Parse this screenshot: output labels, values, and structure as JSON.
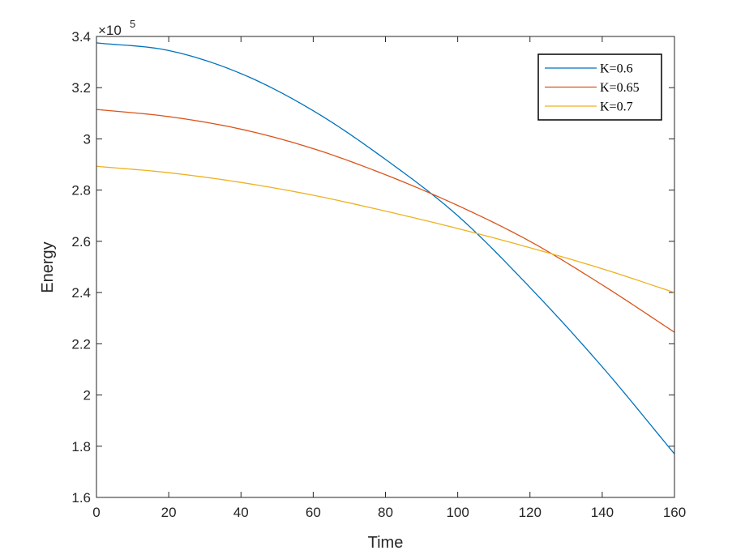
{
  "chart_data": {
    "type": "line",
    "title": "",
    "xlabel": "Time",
    "ylabel": "Energy",
    "y_exponent_label": "×10",
    "y_exponent": "5",
    "xlim": [
      0,
      160
    ],
    "ylim": [
      1.6,
      3.4
    ],
    "x_ticks": [
      0,
      20,
      40,
      60,
      80,
      100,
      120,
      140,
      160
    ],
    "y_ticks": [
      1.6,
      1.8,
      2,
      2.2,
      2.4,
      2.6,
      2.8,
      3,
      3.2,
      3.4
    ],
    "x_tick_labels": [
      "0",
      "20",
      "40",
      "60",
      "80",
      "100",
      "120",
      "140",
      "160"
    ],
    "y_tick_labels": [
      "1.6",
      "1.8",
      "2",
      "2.2",
      "2.4",
      "2.6",
      "2.8",
      "3",
      "3.2",
      "3.4"
    ],
    "grid": false,
    "legend_position": "top-right",
    "x": [
      0,
      20,
      40,
      60,
      80,
      100,
      120,
      140,
      160
    ],
    "series": [
      {
        "name": "K=0.6",
        "color": "#0072BD",
        "values": [
          3.375,
          3.345,
          3.255,
          3.11,
          2.92,
          2.7,
          2.42,
          2.11,
          1.77
        ]
      },
      {
        "name": "K=0.65",
        "color": "#D95319",
        "values": [
          3.115,
          3.087,
          3.038,
          2.962,
          2.86,
          2.74,
          2.6,
          2.43,
          2.245
        ]
      },
      {
        "name": "K=0.7",
        "color": "#EDB120",
        "values": [
          2.893,
          2.868,
          2.83,
          2.78,
          2.718,
          2.65,
          2.575,
          2.493,
          2.4
        ]
      }
    ]
  }
}
